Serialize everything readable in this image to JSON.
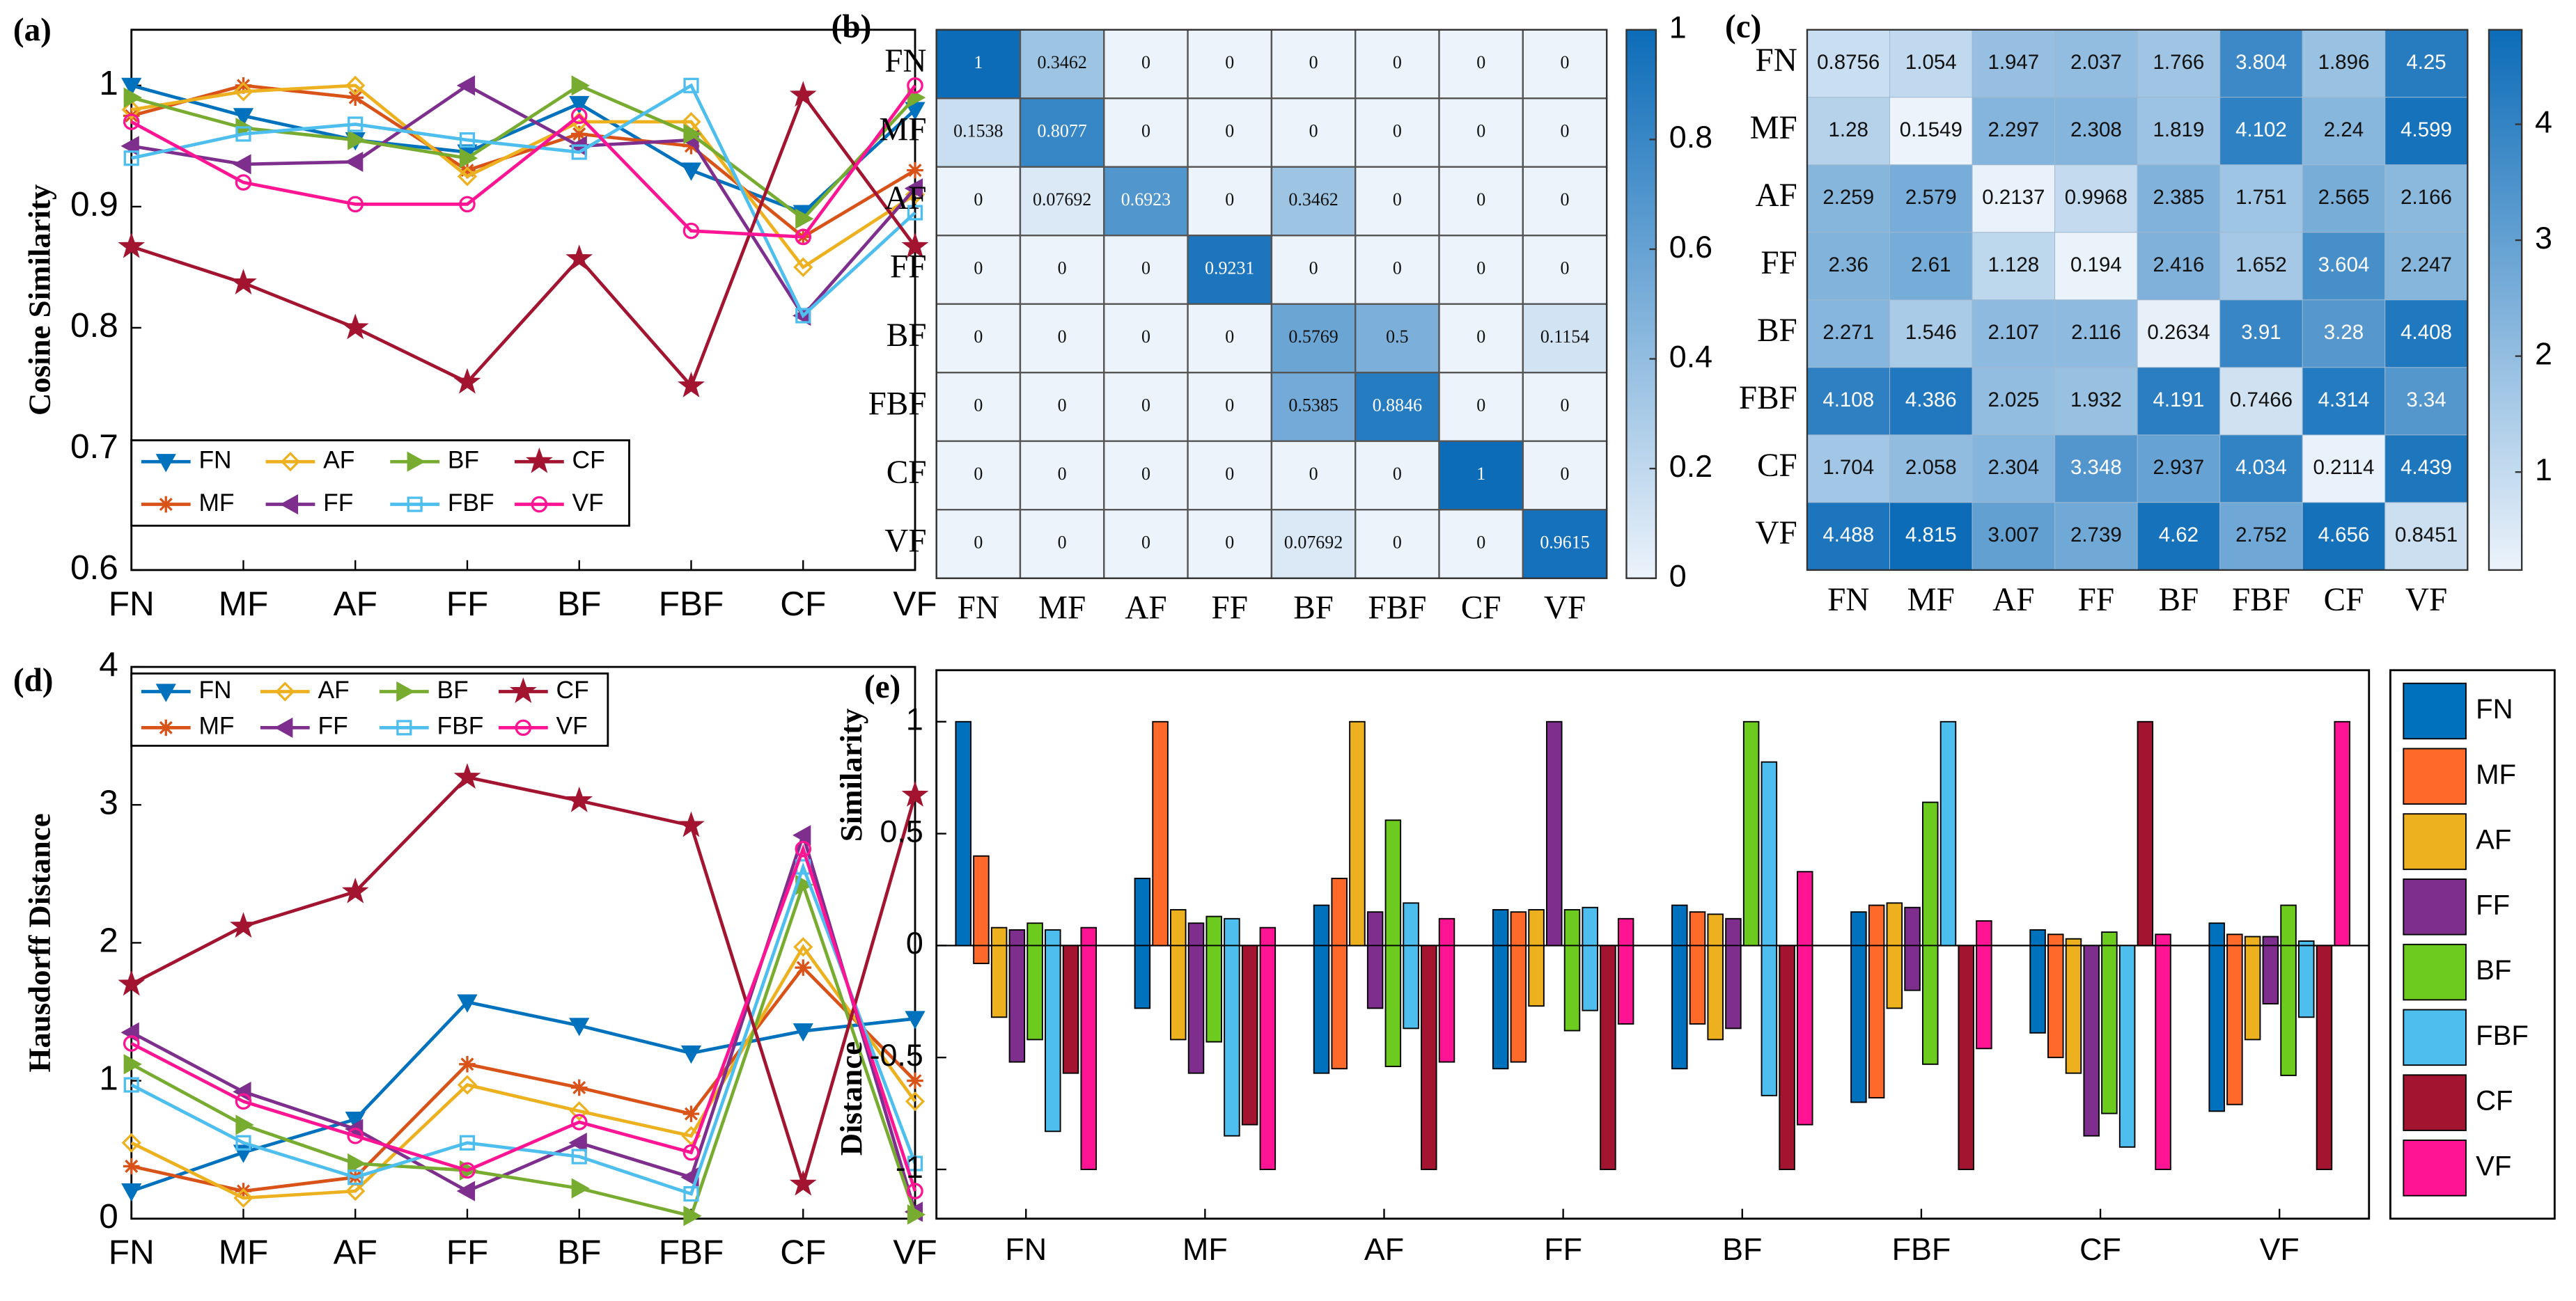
{
  "chart_data": [
    {
      "type": "line",
      "label": "(a)",
      "ylabel": "Cosine Similarity",
      "categories": [
        "FN",
        "MF",
        "AF",
        "FF",
        "BF",
        "FBF",
        "CF",
        "VF"
      ],
      "ylim": [
        0.6,
        1.046
      ],
      "yticks": [
        0.6,
        0.7,
        0.8,
        0.9,
        1
      ],
      "legend": "lower left",
      "series": [
        {
          "name": "FN",
          "color": "#0072BD",
          "marker": "v",
          "values": [
            1.0,
            0.975,
            0.955,
            0.945,
            0.985,
            0.93,
            0.895,
            0.98
          ]
        },
        {
          "name": "MF",
          "color": "#D95319",
          "marker": "*",
          "values": [
            0.975,
            1.0,
            0.99,
            0.93,
            0.96,
            0.95,
            0.875,
            0.93
          ]
        },
        {
          "name": "AF",
          "color": "#EDB120",
          "marker": "d",
          "values": [
            0.98,
            0.995,
            1.0,
            0.925,
            0.97,
            0.97,
            0.85,
            0.91
          ]
        },
        {
          "name": "FF",
          "color": "#7E2F8E",
          "marker": "<",
          "values": [
            0.95,
            0.935,
            0.937,
            1.0,
            0.95,
            0.955,
            0.81,
            0.915
          ]
        },
        {
          "name": "BF",
          "color": "#77AC30",
          "marker": ">",
          "values": [
            0.99,
            0.965,
            0.955,
            0.94,
            1.0,
            0.96,
            0.89,
            0.99
          ]
        },
        {
          "name": "FBF",
          "color": "#4DBEEE",
          "marker": "s",
          "values": [
            0.94,
            0.96,
            0.968,
            0.955,
            0.945,
            1.0,
            0.81,
            0.895
          ]
        },
        {
          "name": "CF",
          "color": "#A2142F",
          "marker": "p",
          "values": [
            0.867,
            0.837,
            0.8,
            0.755,
            0.857,
            0.752,
            0.992,
            0.867
          ]
        },
        {
          "name": "VF",
          "color": "#FF1493",
          "marker": "o",
          "values": [
            0.97,
            0.92,
            0.902,
            0.902,
            0.975,
            0.88,
            0.875,
            1.0
          ]
        }
      ]
    },
    {
      "type": "heatmap",
      "label": "(b)",
      "cell_grid": true,
      "text_font": "serif",
      "categories": [
        "FN",
        "MF",
        "AF",
        "FF",
        "BF",
        "FBF",
        "CF",
        "VF"
      ],
      "clim": [
        0,
        1
      ],
      "cticks": [
        0,
        0.2,
        0.4,
        0.6,
        0.8,
        1
      ],
      "values": [
        [
          1,
          0.3462,
          0,
          0,
          0,
          0,
          0,
          0
        ],
        [
          0.1538,
          0.8077,
          0,
          0,
          0,
          0,
          0,
          0
        ],
        [
          0,
          0.07692,
          0.6923,
          0,
          0.3462,
          0,
          0,
          0
        ],
        [
          0,
          0,
          0,
          0.9231,
          0,
          0,
          0,
          0
        ],
        [
          0,
          0,
          0,
          0,
          0.5769,
          0.5,
          0,
          0.1154
        ],
        [
          0,
          0,
          0,
          0,
          0.5385,
          0.8846,
          0,
          0
        ],
        [
          0,
          0,
          0,
          0,
          0,
          0,
          1,
          0
        ],
        [
          0,
          0,
          0,
          0,
          0.07692,
          0,
          0,
          0.9615
        ]
      ]
    },
    {
      "type": "heatmap",
      "label": "(c)",
      "cell_grid": false,
      "text_font": "sans",
      "categories": [
        "FN",
        "MF",
        "AF",
        "FF",
        "BF",
        "FBF",
        "CF",
        "VF"
      ],
      "clim": [
        0.1549,
        4.815
      ],
      "cticks": [
        1,
        2,
        3,
        4
      ],
      "values": [
        [
          0.8756,
          1.054,
          1.947,
          2.037,
          1.766,
          3.804,
          1.896,
          4.25
        ],
        [
          1.28,
          0.1549,
          2.297,
          2.308,
          1.819,
          4.102,
          2.24,
          4.599
        ],
        [
          2.259,
          2.579,
          0.2137,
          0.9968,
          2.385,
          1.751,
          2.565,
          2.166
        ],
        [
          2.36,
          2.61,
          1.128,
          0.194,
          2.416,
          1.652,
          3.604,
          2.247
        ],
        [
          2.271,
          1.546,
          2.107,
          2.116,
          0.2634,
          3.91,
          3.28,
          4.408
        ],
        [
          4.108,
          4.386,
          2.025,
          1.932,
          4.191,
          0.7466,
          4.314,
          3.34
        ],
        [
          1.704,
          2.058,
          2.304,
          3.348,
          2.937,
          4.034,
          0.2114,
          4.439
        ],
        [
          4.488,
          4.815,
          3.007,
          2.739,
          4.62,
          2.752,
          4.656,
          0.8451
        ]
      ]
    },
    {
      "type": "line",
      "label": "(d)",
      "ylabel": "Hausdorff Distance",
      "categories": [
        "FN",
        "MF",
        "AF",
        "FF",
        "BF",
        "FBF",
        "CF",
        "VF"
      ],
      "ylim": [
        0,
        4
      ],
      "yticks": [
        0,
        1,
        2,
        3,
        4
      ],
      "legend": "upper left",
      "series": [
        {
          "name": "FN",
          "color": "#0072BD",
          "marker": "v",
          "values": [
            0.2,
            0.48,
            0.72,
            1.57,
            1.4,
            1.2,
            1.36,
            1.45
          ]
        },
        {
          "name": "MF",
          "color": "#D95319",
          "marker": "*",
          "values": [
            0.38,
            0.2,
            0.3,
            1.12,
            0.95,
            0.76,
            1.82,
            1.0
          ]
        },
        {
          "name": "AF",
          "color": "#EDB120",
          "marker": "d",
          "values": [
            0.55,
            0.15,
            0.2,
            0.97,
            0.78,
            0.6,
            1.97,
            0.85
          ]
        },
        {
          "name": "FF",
          "color": "#7E2F8E",
          "marker": "<",
          "values": [
            1.35,
            0.92,
            0.65,
            0.2,
            0.55,
            0.3,
            2.78,
            0.05
          ]
        },
        {
          "name": "BF",
          "color": "#77AC30",
          "marker": ">",
          "values": [
            1.12,
            0.68,
            0.4,
            0.35,
            0.22,
            0.02,
            2.42,
            0.03
          ]
        },
        {
          "name": "FBF",
          "color": "#4DBEEE",
          "marker": "s",
          "values": [
            0.97,
            0.55,
            0.3,
            0.55,
            0.45,
            0.18,
            2.55,
            0.4
          ]
        },
        {
          "name": "CF",
          "color": "#A2142F",
          "marker": "p",
          "values": [
            1.7,
            2.12,
            2.37,
            3.2,
            3.03,
            2.85,
            0.25,
            3.07
          ]
        },
        {
          "name": "VF",
          "color": "#FF1493",
          "marker": "o",
          "values": [
            1.27,
            0.85,
            0.6,
            0.35,
            0.7,
            0.48,
            2.68,
            0.2
          ]
        }
      ]
    },
    {
      "type": "bar",
      "label": "(e)",
      "ylabel_upper": "Similarity",
      "ylabel_lower": "Distance",
      "categories": [
        "FN",
        "MF",
        "AF",
        "FF",
        "BF",
        "FBF",
        "CF",
        "VF"
      ],
      "ylim": [
        -1.22,
        1.23
      ],
      "yticks": [
        -1,
        -0.5,
        0,
        0.5,
        1
      ],
      "legend": "outside right",
      "series": [
        {
          "name": "FN",
          "color": "#0072BD",
          "values": [
            1,
            0.3,
            0.18,
            0.16,
            0.18,
            0.15,
            0.07,
            0.1
          ],
          "distance": [
            0,
            -0.28,
            -0.57,
            -0.55,
            -0.55,
            -0.7,
            -0.39,
            -0.74
          ]
        },
        {
          "name": "MF",
          "color": "#FF6A2A",
          "values": [
            0.4,
            1,
            0.3,
            0.15,
            0.15,
            0.18,
            0.05,
            0.05
          ],
          "distance": [
            -0.08,
            0,
            -0.55,
            -0.52,
            -0.35,
            -0.68,
            -0.5,
            -0.71
          ]
        },
        {
          "name": "AF",
          "color": "#EDB120",
          "values": [
            0.08,
            0.16,
            1,
            0.16,
            0.14,
            0.19,
            0.03,
            0.04
          ],
          "distance": [
            -0.32,
            -0.42,
            0,
            -0.27,
            -0.42,
            -0.28,
            -0.57,
            -0.42
          ]
        },
        {
          "name": "FF",
          "color": "#7E2F8E",
          "values": [
            0.07,
            0.1,
            0.15,
            1,
            0.12,
            0.17,
            0,
            0.04
          ],
          "distance": [
            -0.52,
            -0.57,
            -0.28,
            0,
            -0.37,
            -0.2,
            -0.85,
            -0.26
          ]
        },
        {
          "name": "BF",
          "color": "#6CCB1E",
          "values": [
            0.1,
            0.13,
            0.56,
            0.16,
            1,
            0.64,
            0.06,
            0.18
          ],
          "distance": [
            -0.42,
            -0.43,
            -0.54,
            -0.38,
            0,
            -0.53,
            -0.75,
            -0.58
          ]
        },
        {
          "name": "FBF",
          "color": "#4DBEEE",
          "values": [
            0.07,
            0.12,
            0.19,
            0.17,
            0.82,
            1,
            0,
            0.02
          ],
          "distance": [
            -0.83,
            -0.85,
            -0.37,
            -0.29,
            -0.67,
            0,
            -0.9,
            -0.32
          ]
        },
        {
          "name": "CF",
          "color": "#A2142F",
          "values": [
            0,
            0,
            0,
            0,
            0,
            0,
            1,
            0
          ],
          "distance": [
            -0.57,
            -0.8,
            -1,
            -1,
            -1,
            -1,
            0,
            -1
          ]
        },
        {
          "name": "VF",
          "color": "#FF1493",
          "values": [
            0.08,
            0.08,
            0.12,
            0.12,
            0.33,
            0.11,
            0.05,
            1
          ],
          "distance": [
            -1,
            -1,
            -0.52,
            -0.35,
            -0.8,
            -0.46,
            -1,
            0
          ]
        }
      ]
    }
  ]
}
